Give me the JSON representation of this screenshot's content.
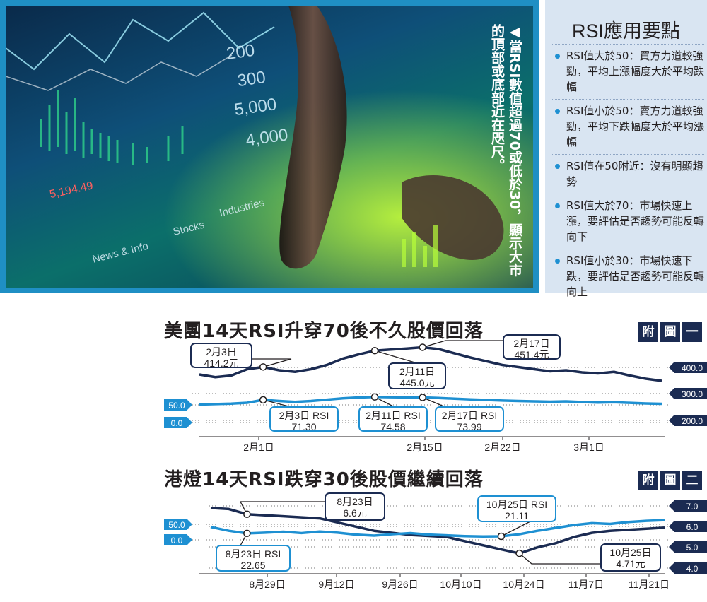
{
  "photo": {
    "caption": "◀當RSI數值超過70或低於30，顯示大市的頂部或底部近在咫尺。",
    "screen_numbers": [
      "200",
      "300",
      "5,000",
      "4,000",
      "5,194.49",
      "Stocks",
      "Industries",
      "News & Info"
    ]
  },
  "rsi_points": {
    "title": "RSI應用要點",
    "items": [
      "RSI值大於50：買方力道較強勁，平均上漲幅度大於平均跌幅",
      "RSI值小於50：賣方力道較強勁，平均下跌幅度大於平均漲幅",
      "RSI值在50附近：沒有明顯趨勢",
      "RSI值大於70：市場快速上漲，要評估是否趨勢可能反轉向下",
      "RSI值小於30：市場快速下跌，要評估是否趨勢可能反轉向上"
    ]
  },
  "figure_labels": {
    "fig1": [
      "附",
      "圖",
      "一"
    ],
    "fig2": [
      "附",
      "圖",
      "二"
    ]
  },
  "chart_data": [
    {
      "type": "line",
      "title": "美團14天RSI升穿70後不久股價回落",
      "x_tick_labels": [
        "2月1日",
        "2月15日",
        "2月22日",
        "3月1日"
      ],
      "price_axis_ticks": [
        "400.0",
        "300.0",
        "200.0"
      ],
      "rsi_axis_ticks": [
        "50.0",
        "0.0"
      ],
      "series": [
        {
          "values": [
            400,
            395,
            398,
            410,
            414.2,
            408,
            405,
            410,
            418,
            430,
            438,
            445.0,
            447,
            449,
            451.4,
            448,
            440,
            432,
            425,
            418,
            414,
            410,
            406,
            408,
            404,
            402,
            405,
            398,
            392,
            388
          ]
        },
        {
          "values": [
            66,
            66.5,
            67,
            68,
            71.3,
            70,
            69,
            70,
            71.5,
            73,
            74,
            74.58,
            74.3,
            74.1,
            73.99,
            73.4,
            72.6,
            71.8,
            71.2,
            70.5,
            70,
            69.6,
            69.2,
            69.6,
            68.8,
            68.2,
            68.6,
            67.9,
            67.2,
            66.8
          ]
        }
      ],
      "annotations": [
        {
          "lines": [
            "2月3日",
            "414.2元"
          ]
        },
        {
          "lines": [
            "2月11日",
            "445.0元"
          ]
        },
        {
          "lines": [
            "2月17日",
            "451.4元"
          ]
        },
        {
          "lines": [
            "2月3日 RSI",
            "71.30"
          ]
        },
        {
          "lines": [
            "2月11日 RSI",
            "74.58"
          ]
        },
        {
          "lines": [
            "2月17日 RSI",
            "73.99"
          ]
        }
      ]
    },
    {
      "type": "line",
      "title": "港燈14天RSI跌穿30後股價繼續回落",
      "x_tick_labels": [
        "8月29日",
        "9月12日",
        "9月26日",
        "10月10日",
        "10月24日",
        "11月7日",
        "11月21日"
      ],
      "price_axis_ticks": [
        "7.0",
        "6.0",
        "5.0",
        "4.0"
      ],
      "rsi_axis_ticks": [
        "50.0",
        "0.0"
      ],
      "series": [
        {
          "values": [
            6.9,
            6.85,
            6.6,
            6.55,
            6.5,
            6.45,
            6.4,
            6.2,
            6.0,
            5.8,
            5.7,
            5.6,
            5.55,
            5.5,
            5.3,
            5.1,
            4.9,
            4.71,
            5.0,
            5.2,
            5.5,
            5.7,
            5.8,
            5.85,
            5.9,
            5.95
          ]
        },
        {
          "values": [
            26,
            24,
            22.65,
            23,
            23.5,
            22.8,
            23.6,
            23,
            22,
            21.5,
            22.2,
            22.8,
            22,
            21.6,
            21.2,
            21.0,
            21.11,
            22.2,
            24,
            25.5,
            27,
            28,
            27.6,
            28.6,
            29.2,
            29.6
          ]
        }
      ],
      "annotations": [
        {
          "lines": [
            "8月23日",
            "6.6元"
          ]
        },
        {
          "lines": [
            "10月25日 RSI",
            "21.11"
          ]
        },
        {
          "lines": [
            "8月23日 RSI",
            "22.65"
          ]
        },
        {
          "lines": [
            "10月25日",
            "4.71元"
          ]
        }
      ]
    }
  ],
  "colors": {
    "price_line": "#1b2b52",
    "rsi_line": "#1e90d2",
    "bg_box": "#d9e5f2"
  }
}
